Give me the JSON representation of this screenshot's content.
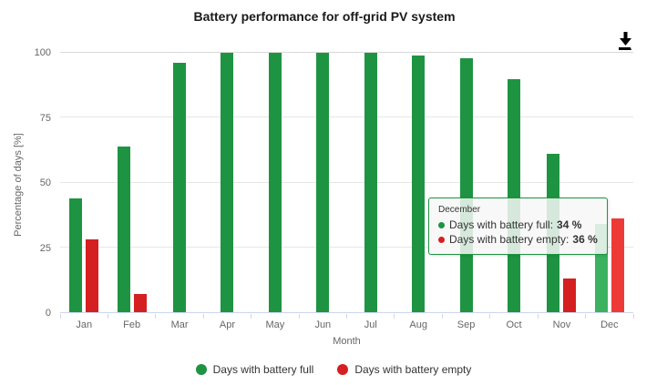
{
  "title": "Battery performance for off-grid PV system",
  "icons": {
    "export_button": "download-icon"
  },
  "colors": {
    "series_full": "#1e9442",
    "series_empty": "#d42020",
    "series_full_hover": "#3cb15f",
    "series_empty_hover": "#ee3a36",
    "gridline": "#e6e6e6",
    "axis_line": "#ccd6eb",
    "axis_text": "#666666",
    "legend_text": "#333333",
    "tooltip_border": "#1e9442"
  },
  "chart_data": {
    "type": "bar",
    "title": "Battery performance for off-grid PV system",
    "xlabel": "Month",
    "ylabel": "Percentage of days [%]",
    "ylim": [
      0,
      100
    ],
    "yticks": [
      0,
      25,
      50,
      75,
      100
    ],
    "grid": true,
    "legend_position": "bottom",
    "categories": [
      "Jan",
      "Feb",
      "Mar",
      "Apr",
      "May",
      "Jun",
      "Jul",
      "Aug",
      "Sep",
      "Oct",
      "Nov",
      "Dec"
    ],
    "series": [
      {
        "name": "Days with battery full",
        "color": "#1e9442",
        "hover_color": "#3cb15f",
        "values": [
          44,
          64,
          96,
          100,
          100,
          100,
          100,
          99,
          98,
          90,
          61,
          34
        ]
      },
      {
        "name": "Days with battery empty",
        "color": "#d42020",
        "hover_color": "#ee3a36",
        "values": [
          28,
          7,
          0,
          0,
          0,
          0,
          0,
          0,
          0,
          0,
          13,
          36
        ]
      }
    ],
    "highlighted_category": "Dec"
  },
  "tooltip": {
    "header": "December",
    "rows": [
      {
        "label": "Days with battery full:",
        "value": "34 %",
        "color": "#1e9442"
      },
      {
        "label": "Days with battery empty:",
        "value": "36 %",
        "color": "#d42020"
      }
    ]
  },
  "legend": {
    "items": [
      {
        "label": "Days with battery full",
        "color": "#1e9442"
      },
      {
        "label": "Days with battery empty",
        "color": "#d42020"
      }
    ]
  }
}
